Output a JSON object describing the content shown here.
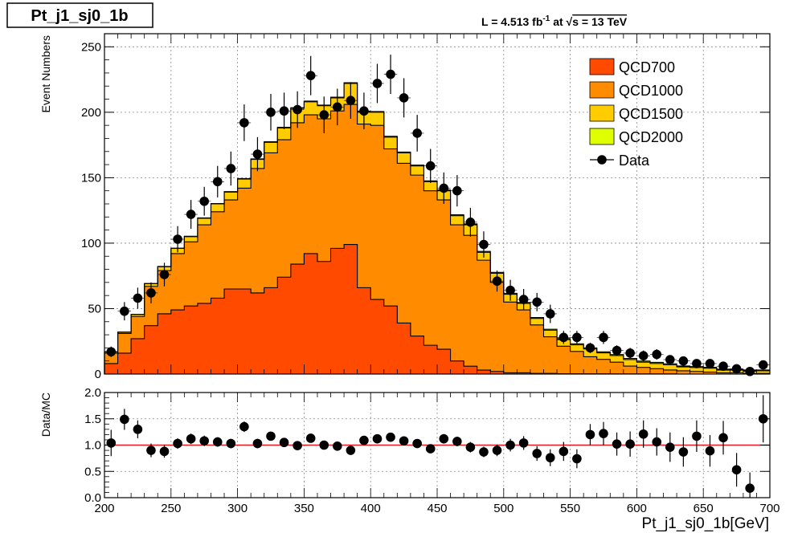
{
  "title_box": "Pt_j1_sj0_1b",
  "lumi_label": {
    "prefix": "L = 4.513 fb",
    "exp": "-1",
    "at": " at  ",
    "sqrt": "√",
    "s_label": "s = 13 TeV"
  },
  "colors": {
    "QCD700": "#ff4a00",
    "QCD1000": "#ff8c00",
    "QCD1500": "#ffcc00",
    "QCD2000": "#dfff00",
    "data": "#000000",
    "ratio_line": "#e8191e"
  },
  "chart_data": [
    {
      "type": "bar",
      "subtype": "stacked-histogram",
      "title": "Pt_j1_sj0_1b",
      "xlabel": "",
      "ylabel": "Event Numbers",
      "xlim": [
        200,
        700
      ],
      "ylim": [
        0,
        260
      ],
      "yticks": [
        0,
        50,
        100,
        150,
        200,
        250
      ],
      "grid": true,
      "legend_position": "top-right",
      "bin_edges": [
        200,
        210,
        220,
        230,
        240,
        250,
        260,
        270,
        280,
        290,
        300,
        310,
        320,
        330,
        340,
        350,
        360,
        370,
        380,
        390,
        400,
        410,
        420,
        430,
        440,
        450,
        460,
        470,
        480,
        490,
        500,
        510,
        520,
        530,
        540,
        550,
        560,
        570,
        580,
        590,
        600,
        610,
        620,
        630,
        640,
        650,
        660,
        670,
        680,
        690,
        700
      ],
      "series": [
        {
          "name": "QCD700",
          "values": [
            8,
            16,
            27,
            37,
            46,
            49,
            52,
            54,
            58,
            65,
            65,
            62,
            66,
            74,
            84,
            92,
            86,
            96,
            99,
            66,
            57,
            52,
            39,
            29,
            22,
            19,
            10,
            6,
            3,
            2,
            1,
            1,
            0.5,
            0.5,
            0.3,
            0.3,
            0.2,
            0.2,
            0.1,
            0.1,
            0.1,
            0.1,
            0.1,
            0,
            0,
            0,
            0,
            0,
            0,
            0
          ]
        },
        {
          "name": "QCD1000",
          "values": [
            8,
            15,
            17,
            30,
            33,
            43,
            49,
            60,
            66,
            68,
            77,
            95,
            103,
            105,
            108,
            106,
            109,
            105,
            107,
            125,
            133,
            120,
            122,
            123,
            118,
            114,
            104,
            100,
            84,
            68,
            54,
            48,
            37,
            28,
            21,
            17,
            13,
            11,
            9,
            6,
            5,
            4,
            3,
            2.5,
            2,
            1.5,
            1,
            1,
            0.5,
            0.5
          ]
        },
        {
          "name": "QCD1500",
          "values": [
            1,
            1,
            1.5,
            2,
            3,
            4,
            4,
            5,
            6,
            6,
            7,
            7,
            8,
            9,
            11,
            10,
            10,
            10,
            16,
            9,
            10,
            9,
            8,
            7,
            7,
            7,
            7,
            8,
            6,
            7,
            6,
            5,
            5,
            5,
            5,
            5,
            6,
            5,
            5,
            5,
            4,
            4,
            4,
            3,
            3,
            3,
            2,
            2,
            2,
            2
          ]
        },
        {
          "name": "QCD2000",
          "values": [
            0.1,
            0.1,
            0.1,
            0.2,
            0.2,
            0.2,
            0.3,
            0.3,
            0.3,
            0.4,
            0.4,
            0.4,
            0.5,
            0.5,
            0.5,
            0.5,
            0.5,
            0.5,
            0.6,
            0.6,
            0.6,
            0.6,
            0.6,
            0.6,
            0.6,
            0.6,
            0.7,
            0.7,
            0.7,
            0.7,
            0.7,
            0.7,
            0.7,
            0.7,
            0.8,
            0.8,
            0.8,
            0.8,
            0.8,
            0.8,
            0.8,
            0.8,
            0.8,
            0.7,
            0.7,
            0.7,
            0.7,
            0.6,
            0.6,
            0.6
          ]
        },
        {
          "name": "Data",
          "type": "points",
          "values": [
            17,
            48,
            58,
            62,
            76,
            103,
            122,
            132,
            147,
            157,
            192,
            168,
            200,
            201,
            202,
            228,
            198,
            204,
            209,
            201,
            222,
            229,
            211,
            184,
            159,
            142,
            140,
            116,
            99,
            71,
            64,
            57,
            55,
            46,
            28,
            28,
            20,
            28,
            18,
            16,
            14,
            15,
            11,
            10,
            8,
            8,
            6,
            4,
            2,
            7
          ],
          "errors": [
            4,
            7,
            8,
            8,
            9,
            10,
            11,
            11,
            12,
            13,
            14,
            13,
            14,
            14,
            14,
            15,
            14,
            14,
            14,
            14,
            15,
            15,
            15,
            14,
            13,
            12,
            12,
            11,
            10,
            8,
            8,
            8,
            7,
            7,
            5,
            5,
            4,
            5,
            4,
            4,
            4,
            4,
            3,
            3,
            3,
            3,
            2,
            2,
            1.5,
            3
          ]
        }
      ]
    },
    {
      "type": "scatter",
      "subtype": "ratio",
      "xlabel": "Pt_j1_sj0_1b[GeV]",
      "ylabel": "Data/MC",
      "xlim": [
        200,
        700
      ],
      "ylim": [
        0.0,
        2.0
      ],
      "yticks": [
        "0.0",
        "0.5",
        "1.0",
        "1.5",
        "2.0"
      ],
      "xticks": [
        200,
        250,
        300,
        350,
        400,
        450,
        500,
        550,
        600,
        650,
        700
      ],
      "reference_line": 1.0,
      "grid": true,
      "x": [
        205,
        215,
        225,
        235,
        245,
        255,
        265,
        275,
        285,
        295,
        305,
        315,
        325,
        335,
        345,
        355,
        365,
        375,
        385,
        395,
        405,
        415,
        425,
        435,
        445,
        455,
        465,
        475,
        485,
        495,
        505,
        515,
        525,
        535,
        545,
        555,
        565,
        575,
        585,
        595,
        605,
        615,
        625,
        635,
        645,
        655,
        665,
        675,
        685,
        695
      ],
      "values": [
        1.04,
        1.49,
        1.3,
        0.9,
        0.88,
        1.03,
        1.12,
        1.08,
        1.06,
        1.03,
        1.35,
        1.03,
        1.17,
        1.05,
        0.99,
        1.13,
        1.0,
        0.98,
        0.9,
        1.09,
        1.12,
        1.15,
        1.08,
        1.03,
        0.93,
        1.12,
        1.07,
        0.96,
        0.87,
        0.9,
        1.0,
        1.04,
        0.84,
        0.76,
        0.88,
        0.74,
        1.2,
        1.22,
        1.02,
        1.02,
        1.21,
        1.06,
        0.96,
        0.87,
        1.17,
        0.89,
        1.14,
        0.53,
        0.18,
        1.5
      ],
      "errors": [
        0.25,
        0.2,
        0.17,
        0.13,
        0.12,
        0.1,
        0.1,
        0.1,
        0.09,
        0.09,
        0.1,
        0.09,
        0.08,
        0.08,
        0.08,
        0.08,
        0.08,
        0.08,
        0.07,
        0.08,
        0.08,
        0.08,
        0.08,
        0.08,
        0.08,
        0.09,
        0.09,
        0.1,
        0.1,
        0.11,
        0.12,
        0.13,
        0.14,
        0.16,
        0.18,
        0.18,
        0.2,
        0.22,
        0.22,
        0.24,
        0.26,
        0.26,
        0.28,
        0.28,
        0.3,
        0.3,
        0.32,
        0.32,
        0.3,
        0.45
      ]
    }
  ]
}
